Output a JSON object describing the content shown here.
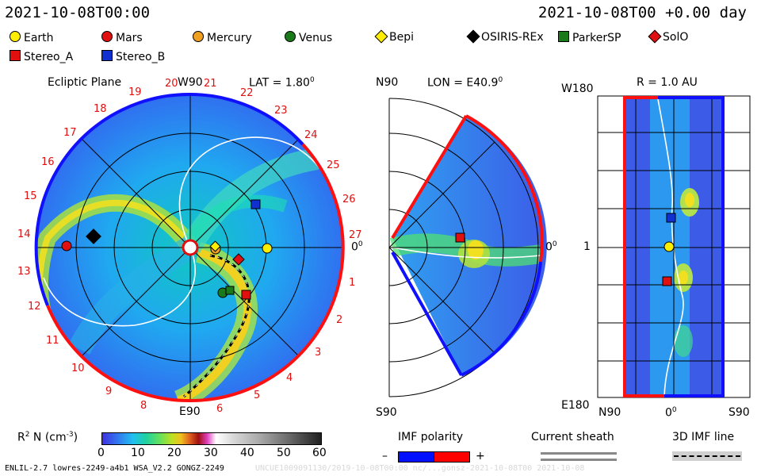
{
  "header": {
    "datetime_left": "2021-10-08T00:00",
    "datetime_right": "2021-10-08T00 +0.00 day"
  },
  "legend": {
    "items": [
      {
        "label": "Earth",
        "shape": "circle",
        "color": "#ffee00"
      },
      {
        "label": "Mars",
        "shape": "circle",
        "color": "#e01010"
      },
      {
        "label": "Mercury",
        "shape": "circle",
        "color": "#f0a020"
      },
      {
        "label": "Venus",
        "shape": "circle",
        "color": "#1a7a1a"
      },
      {
        "label": "Bepi",
        "shape": "diamond",
        "color": "#ffee00"
      },
      {
        "label": "OSIRIS-REx",
        "shape": "diamond",
        "color": "#000000"
      },
      {
        "label": "ParkerSP",
        "shape": "square",
        "color": "#1a7a1a"
      },
      {
        "label": "SolO",
        "shape": "diamond",
        "color": "#e01010"
      },
      {
        "label": "Stereo_A",
        "shape": "square",
        "color": "#e01010"
      },
      {
        "label": "Stereo_B",
        "shape": "square",
        "color": "#1030d0"
      }
    ]
  },
  "panel_ecliptic": {
    "title": "Ecliptic Plane",
    "lat_label": "LAT = 1.80",
    "lat_sup": "0",
    "top_label": "W90",
    "bottom_label": "E90",
    "right_label": "0",
    "right_sup": "0",
    "carrington_days": [
      "1",
      "2",
      "3",
      "4",
      "5",
      "6",
      "8",
      "9",
      "10",
      "11",
      "12",
      "13",
      "14",
      "15",
      "16",
      "17",
      "18",
      "19",
      "20",
      "21",
      "22",
      "23",
      "24",
      "25",
      "26",
      "27"
    ]
  },
  "panel_meridional": {
    "lon_label": "LON = E40.9",
    "lon_sup": "0",
    "top_label": "N90",
    "bottom_label": "S90",
    "right_label": "0",
    "right_sup": "0"
  },
  "panel_latlon": {
    "r_label": "R = 1.0 AU",
    "top_left": "W180",
    "bottom_left": "E180",
    "mid_left": "1",
    "x_left": "N90",
    "x_mid": "0",
    "x_mid_sup": "0",
    "x_right": "S90"
  },
  "colorbar": {
    "label_main": "R",
    "label_sup": "2",
    "label_rest": " N (cm",
    "label_exp": "-3",
    "label_end": ")",
    "ticks": [
      "0",
      "10",
      "20",
      "30",
      "40",
      "50",
      "60"
    ]
  },
  "imf": {
    "title": "IMF polarity",
    "minus": "–",
    "plus": "+",
    "minus_color": "#0010ff",
    "plus_color": "#ff0000"
  },
  "current_sheath": {
    "title": "Current sheath"
  },
  "imf_line": {
    "title": "3D IMF line"
  },
  "footer": {
    "left": "ENLIL-2.7 lowres-2249-a4b1 WSA_V2.2 GONGZ-2249",
    "right": "UNCUE1009091130/2019-10-08T00:00 nc/...gonsz-2021-10-08T00   2021-10-08"
  }
}
